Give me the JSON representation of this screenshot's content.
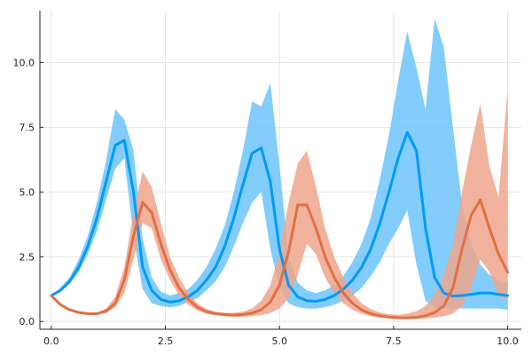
{
  "chart_data": {
    "type": "line",
    "title": "",
    "xlabel": "",
    "ylabel": "",
    "xlim": [
      -0.25,
      10.3
    ],
    "ylim": [
      -0.3,
      12.0
    ],
    "grid": true,
    "legend": "none",
    "x_ticks": [
      0.0,
      2.5,
      5.0,
      7.5,
      10.0
    ],
    "x_tick_labels": [
      "0.0",
      "2.5",
      "5.0",
      "7.5",
      "10.0"
    ],
    "y_ticks": [
      0.0,
      2.5,
      5.0,
      7.5,
      10.0
    ],
    "y_tick_labels": [
      "0.0",
      "2.5",
      "5.0",
      "7.5",
      "10.0"
    ],
    "x": [
      0.0,
      0.2,
      0.4,
      0.6,
      0.8,
      1.0,
      1.2,
      1.4,
      1.6,
      1.8,
      2.0,
      2.2,
      2.4,
      2.6,
      2.8,
      3.0,
      3.2,
      3.4,
      3.6,
      3.8,
      4.0,
      4.2,
      4.4,
      4.6,
      4.8,
      5.0,
      5.2,
      5.4,
      5.6,
      5.8,
      6.0,
      6.2,
      6.4,
      6.6,
      6.8,
      7.0,
      7.2,
      7.4,
      7.6,
      7.8,
      8.0,
      8.2,
      8.4,
      8.6,
      8.8,
      9.0,
      9.2,
      9.4,
      9.6,
      9.8,
      10.0
    ],
    "series": [
      {
        "color": "#009af9",
        "band_color": "#6cc4fb",
        "mean": [
          1.0,
          1.2,
          1.55,
          2.1,
          2.9,
          4.0,
          5.4,
          6.8,
          7.0,
          5.0,
          2.1,
          1.2,
          0.85,
          0.75,
          0.8,
          0.95,
          1.2,
          1.6,
          2.1,
          2.9,
          4.0,
          5.3,
          6.5,
          6.7,
          5.4,
          2.8,
          1.4,
          0.95,
          0.8,
          0.78,
          0.85,
          1.0,
          1.25,
          1.6,
          2.1,
          2.8,
          3.8,
          5.0,
          6.3,
          7.3,
          6.6,
          3.6,
          1.7,
          1.1,
          0.98,
          1.0,
          1.05,
          1.1,
          1.1,
          1.05,
          1.0
        ],
        "lower": [
          1.0,
          1.15,
          1.45,
          1.9,
          2.6,
          3.5,
          4.7,
          5.9,
          6.3,
          3.3,
          1.25,
          0.7,
          0.6,
          0.55,
          0.6,
          0.75,
          0.9,
          1.2,
          1.55,
          2.1,
          2.9,
          3.8,
          4.6,
          5.0,
          2.8,
          1.3,
          0.7,
          0.55,
          0.5,
          0.5,
          0.55,
          0.65,
          0.8,
          1.0,
          1.3,
          1.75,
          2.3,
          3.0,
          3.6,
          4.3,
          2.2,
          0.8,
          0.55,
          0.5,
          0.5,
          0.5,
          0.5,
          0.5,
          0.5,
          0.5,
          0.45
        ],
        "upper": [
          1.0,
          1.3,
          1.7,
          2.4,
          3.3,
          4.6,
          6.2,
          8.2,
          7.8,
          6.6,
          3.2,
          1.7,
          1.15,
          1.0,
          1.1,
          1.25,
          1.6,
          2.1,
          2.8,
          3.7,
          5.0,
          6.6,
          8.5,
          8.3,
          9.2,
          6.0,
          2.5,
          1.5,
          1.2,
          1.1,
          1.2,
          1.4,
          1.75,
          2.3,
          3.0,
          4.0,
          5.5,
          7.2,
          9.3,
          11.2,
          9.8,
          8.2,
          11.7,
          10.6,
          7.5,
          4.5,
          3.0,
          2.2,
          1.8,
          1.6,
          1.5
        ]
      },
      {
        "color": "#e26f46",
        "band_color": "#efa68c",
        "mean": [
          1.0,
          0.65,
          0.45,
          0.35,
          0.3,
          0.3,
          0.4,
          0.7,
          1.6,
          3.3,
          4.6,
          4.2,
          3.0,
          2.0,
          1.3,
          0.85,
          0.55,
          0.38,
          0.3,
          0.27,
          0.25,
          0.27,
          0.32,
          0.45,
          0.75,
          1.4,
          2.7,
          4.5,
          4.5,
          3.6,
          2.5,
          1.7,
          1.1,
          0.7,
          0.45,
          0.3,
          0.22,
          0.17,
          0.14,
          0.14,
          0.16,
          0.22,
          0.35,
          0.6,
          1.3,
          2.8,
          4.1,
          4.7,
          3.6,
          2.6,
          1.9
        ],
        "lower": [
          1.0,
          0.6,
          0.42,
          0.32,
          0.28,
          0.27,
          0.33,
          0.55,
          1.1,
          2.4,
          3.8,
          3.6,
          2.4,
          1.6,
          1.0,
          0.65,
          0.42,
          0.3,
          0.24,
          0.2,
          0.18,
          0.18,
          0.2,
          0.25,
          0.32,
          0.5,
          0.9,
          1.8,
          3.0,
          2.6,
          1.7,
          1.1,
          0.7,
          0.45,
          0.3,
          0.2,
          0.15,
          0.12,
          0.1,
          0.1,
          0.1,
          0.12,
          0.15,
          0.2,
          0.3,
          0.6,
          1.3,
          2.4,
          1.9,
          1.0,
          0.8
        ],
        "upper": [
          1.0,
          0.7,
          0.5,
          0.4,
          0.35,
          0.34,
          0.5,
          0.95,
          2.1,
          4.2,
          5.8,
          5.2,
          3.8,
          2.5,
          1.7,
          1.1,
          0.7,
          0.48,
          0.38,
          0.34,
          0.33,
          0.38,
          0.5,
          0.8,
          1.4,
          2.7,
          4.6,
          6.1,
          6.6,
          5.2,
          3.6,
          2.5,
          1.7,
          1.1,
          0.7,
          0.48,
          0.35,
          0.28,
          0.26,
          0.3,
          0.4,
          0.6,
          1.0,
          1.8,
          3.0,
          5.0,
          6.8,
          8.4,
          6.0,
          4.8,
          9.0
        ]
      }
    ]
  }
}
